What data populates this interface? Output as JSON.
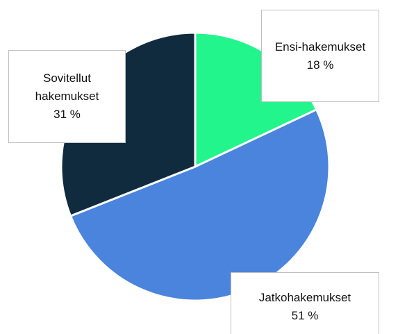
{
  "chart_data": {
    "type": "pie",
    "categories": [
      "Ensi-hakemukset",
      "Jatkohakemukset",
      "Sovitellut hakemukset"
    ],
    "values": [
      18,
      51,
      31
    ],
    "value_labels": [
      "18 %",
      "51 %",
      "31 %"
    ],
    "colors": [
      "#22f58b",
      "#4a84dd",
      "#112b3e"
    ]
  }
}
